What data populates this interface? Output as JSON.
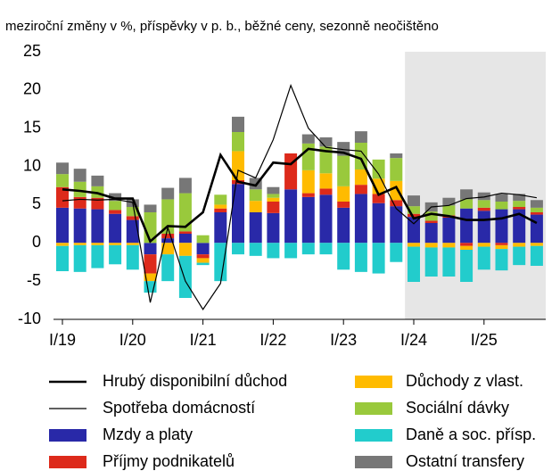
{
  "chart_data": {
    "type": "bar",
    "stacked": true,
    "subtitle": "meziroční změny v %, příspěvky v p. b., běžné ceny, sezonně neočištěno",
    "categories": [
      "I/19",
      null,
      null,
      null,
      "I/20",
      null,
      null,
      null,
      "I/21",
      null,
      null,
      null,
      "I/22",
      null,
      null,
      null,
      "I/23",
      null,
      null,
      null,
      "I/24",
      null,
      null,
      null,
      "I/25",
      null,
      null,
      null
    ],
    "shade_from": "I/24",
    "ylim": [
      -10,
      25
    ],
    "yticks": [
      -10,
      -5,
      0,
      5,
      10,
      15,
      20,
      25
    ],
    "series": [
      {
        "name": "Hrubý disponibilní důchod",
        "type": "line",
        "color": "#000000",
        "width": 2.6,
        "values": [
          7.0,
          6.8,
          6.5,
          5.8,
          5.8,
          0.2,
          2.2,
          2.1,
          4.0,
          11.5,
          8.0,
          7.5,
          10.5,
          10.3,
          12.3,
          12.0,
          11.8,
          11.0,
          6.3,
          7.3,
          3.2,
          3.8,
          3.5,
          3.0,
          3.0,
          3.2,
          3.8,
          2.6
        ]
      },
      {
        "name": "Spotřeba domácností",
        "type": "line",
        "color": "#000000",
        "width": 1.2,
        "values": [
          5.5,
          5.7,
          5.6,
          5.7,
          5.3,
          -7.8,
          2.0,
          -5.0,
          -8.7,
          -5.3,
          9.5,
          8.5,
          13.5,
          20.6,
          15.0,
          12.5,
          12.2,
          12.0,
          9.0,
          4.5,
          2.5,
          4.7,
          4.9,
          5.8,
          6.0,
          6.5,
          6.3,
          5.9
        ]
      },
      {
        "name": "Mzdy a platy",
        "type": "bar",
        "color": "#2929a8",
        "values": [
          4.6,
          4.5,
          4.4,
          3.8,
          3.0,
          -1.5,
          0.6,
          1.2,
          -1.5,
          4.0,
          7.7,
          4.0,
          3.9,
          7.0,
          6.0,
          6.3,
          4.6,
          6.4,
          5.2,
          4.8,
          3.4,
          2.6,
          3.3,
          4.5,
          4.2,
          4.4,
          4.4,
          3.7
        ]
      },
      {
        "name": "Příjmy podnikatelů",
        "type": "bar",
        "color": "#dd2a1b",
        "values": [
          2.7,
          1.5,
          1.5,
          0.5,
          0.5,
          -2.5,
          0.6,
          0.3,
          -0.5,
          0.5,
          0.5,
          0.0,
          1.5,
          4.7,
          0.5,
          0.8,
          0.8,
          1.2,
          1.2,
          0.8,
          0.4,
          0.3,
          0.3,
          -0.4,
          0.4,
          -0.3,
          0.3,
          0.3
        ]
      },
      {
        "name": "Důchody z vlast.",
        "type": "bar",
        "color": "#ffbb00",
        "values": [
          -0.4,
          -0.3,
          -0.3,
          -0.3,
          -0.3,
          -1.0,
          -1.5,
          -1.7,
          -0.6,
          0.5,
          3.8,
          1.5,
          0.5,
          0.0,
          3.0,
          2.0,
          2.0,
          2.0,
          2.0,
          2.5,
          -0.5,
          -0.6,
          -0.6,
          -0.5,
          -0.5,
          -0.5,
          -0.5,
          -0.4
        ]
      },
      {
        "name": "Sociální dávky",
        "type": "bar",
        "color": "#99c93c",
        "values": [
          1.7,
          2.0,
          1.5,
          1.2,
          1.2,
          4.0,
          4.5,
          5.0,
          1.0,
          1.3,
          2.5,
          1.5,
          0.5,
          0.0,
          3.5,
          3.5,
          4.0,
          3.5,
          2.5,
          3.0,
          1.0,
          1.2,
          1.3,
          1.2,
          1.0,
          1.0,
          0.8,
          0.6
        ]
      },
      {
        "name": "Daně a soc. přísp.",
        "type": "bar",
        "color": "#22cccc",
        "values": [
          -3.3,
          -3.5,
          -3.0,
          -2.5,
          -3.2,
          -1.5,
          -3.5,
          -5.5,
          -0.3,
          -5.0,
          -1.5,
          -1.7,
          -2.0,
          -2.0,
          -1.5,
          -1.5,
          -3.5,
          -3.8,
          -4.0,
          -2.5,
          -4.6,
          -3.8,
          -3.8,
          -4.2,
          -3.0,
          -2.8,
          -2.4,
          -2.6
        ]
      },
      {
        "name": "Ostatní transfery",
        "type": "bar",
        "color": "#777777",
        "values": [
          1.5,
          1.7,
          1.4,
          1.0,
          1.0,
          1.0,
          1.5,
          2.0,
          0.0,
          0.0,
          2.0,
          1.5,
          0.9,
          0.0,
          1.2,
          1.2,
          1.8,
          1.5,
          0.0,
          0.6,
          1.4,
          1.2,
          1.0,
          1.3,
          1.0,
          1.0,
          0.9,
          1.0
        ]
      }
    ]
  }
}
